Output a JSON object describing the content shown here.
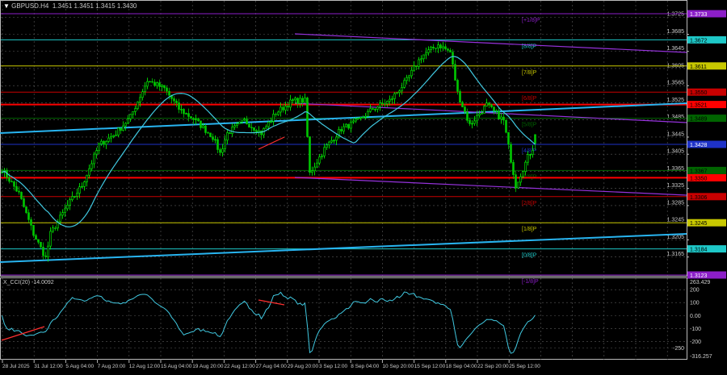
{
  "window": {
    "symbol_title": "GBPUSD.H4",
    "ohlc": "1.3451 1.3451 1.3415 1.3430"
  },
  "indicator": {
    "title": "X_CCI(20) -14.0092"
  },
  "colors": {
    "background": "#000000",
    "grid": "#5a5a5a",
    "bull_candle": "#00ff00",
    "bear_candle": "#00c800",
    "moving_average": "#40c8e0",
    "trend_line": "#28b4f0",
    "channel": "#9632dc",
    "support_resistance": "#ff0000",
    "cci_line": "#40c8e0",
    "divergence": "#ff3030"
  },
  "price_axis": {
    "ticks": [
      "1.3725",
      "1.3685",
      "1.3645",
      "1.3605",
      "1.3565",
      "1.3525",
      "1.3485",
      "1.3445",
      "1.3405",
      "1.3365",
      "1.3325",
      "1.3285",
      "1.3245",
      "1.3205",
      "1.3165"
    ],
    "range": [
      1.3123,
      1.3733
    ]
  },
  "murrey_levels": [
    {
      "label": "[+1/8]P",
      "price": "1.3733",
      "color": "#8c1ec8",
      "text": "#ffffff"
    },
    {
      "label": "[8/8]P",
      "price": "1.3672",
      "color": "#1ec8c8",
      "text": "#000000"
    },
    {
      "label": "[7/8]P",
      "price": "1.3611",
      "color": "#c8c800",
      "text": "#000000"
    },
    {
      "label": "[6/8]P",
      "price": "1.3550",
      "color": "#c80000",
      "text": "#000000"
    },
    {
      "label": "[5/8]P",
      "price": "1.3489",
      "color": "#006400",
      "text": "#000000"
    },
    {
      "label": "[4/8]P",
      "price": "1.3428",
      "color": "#1e32c8",
      "text": "#ffffff"
    },
    {
      "label": "[3/8]P",
      "price": "1.3367",
      "color": "#006400",
      "text": "#000000"
    },
    {
      "label": "[2/8]P",
      "price": "1.3306",
      "color": "#c80000",
      "text": "#000000"
    },
    {
      "label": "[1/8]P",
      "price": "1.3245",
      "color": "#c8c800",
      "text": "#000000"
    },
    {
      "label": "[0/8]P",
      "price": "1.3184",
      "color": "#1ec8c8",
      "text": "#000000"
    },
    {
      "label": "[-1/8]P",
      "price": "1.3123",
      "color": "#8c1ec8",
      "text": "#ffffff"
    }
  ],
  "red_levels": [
    "1.3521",
    "1.3350"
  ],
  "cci_axis": {
    "ticks": [
      "263.429",
      "200",
      "100",
      "0.00",
      "-100",
      "-200",
      "-250",
      "-316.257"
    ],
    "range": [
      -316.257,
      263.429
    ]
  },
  "time_axis": [
    "28 Jul 2025",
    "31 Jul 12:00",
    "5 Aug 04:00",
    "7 Aug 20:00",
    "12 Aug 12:00",
    "15 Aug 04:00",
    "19 Aug 20:00",
    "22 Aug 12:00",
    "27 Aug 04:00",
    "29 Aug 20:00",
    "3 Sep 12:00",
    "8 Sep 04:00",
    "10 Sep 20:00",
    "15 Sep 12:00",
    "18 Sep 04:00",
    "22 Sep 20:00",
    "25 Sep 12:00"
  ],
  "chart_data": {
    "type": "candlestick",
    "approx_close_path": [
      {
        "bar": 0,
        "price": 1.337
      },
      {
        "bar": 7,
        "price": 1.3313
      },
      {
        "bar": 13,
        "price": 1.3219
      },
      {
        "bar": 18,
        "price": 1.3163
      },
      {
        "bar": 20,
        "price": 1.3219
      },
      {
        "bar": 27,
        "price": 1.3285
      },
      {
        "bar": 33,
        "price": 1.3332
      },
      {
        "bar": 40,
        "price": 1.3426
      },
      {
        "bar": 47,
        "price": 1.3454
      },
      {
        "bar": 53,
        "price": 1.3492
      },
      {
        "bar": 60,
        "price": 1.3577
      },
      {
        "bar": 67,
        "price": 1.3558
      },
      {
        "bar": 73,
        "price": 1.3511
      },
      {
        "bar": 80,
        "price": 1.3483
      },
      {
        "bar": 87,
        "price": 1.3445
      },
      {
        "bar": 90,
        "price": 1.3407
      },
      {
        "bar": 93,
        "price": 1.3454
      },
      {
        "bar": 100,
        "price": 1.3483
      },
      {
        "bar": 107,
        "price": 1.3454
      },
      {
        "bar": 113,
        "price": 1.3501
      },
      {
        "bar": 120,
        "price": 1.353
      },
      {
        "bar": 125,
        "price": 1.353
      },
      {
        "bar": 127,
        "price": 1.336
      },
      {
        "bar": 133,
        "price": 1.3417
      },
      {
        "bar": 140,
        "price": 1.3464
      },
      {
        "bar": 147,
        "price": 1.3483
      },
      {
        "bar": 153,
        "price": 1.3511
      },
      {
        "bar": 160,
        "price": 1.353
      },
      {
        "bar": 167,
        "price": 1.3577
      },
      {
        "bar": 173,
        "price": 1.3633
      },
      {
        "bar": 180,
        "price": 1.3661
      },
      {
        "bar": 185,
        "price": 1.3643
      },
      {
        "bar": 188,
        "price": 1.3548
      },
      {
        "bar": 193,
        "price": 1.3473
      },
      {
        "bar": 200,
        "price": 1.352
      },
      {
        "bar": 207,
        "price": 1.3483
      },
      {
        "bar": 212,
        "price": 1.3332
      },
      {
        "bar": 217,
        "price": 1.3398
      },
      {
        "bar": 220,
        "price": 1.343
      }
    ],
    "last": {
      "open": 1.3451,
      "high": 1.3451,
      "low": 1.3415,
      "close": 1.343
    },
    "indicators": [
      "moving average (cyan)",
      "X_CCI(20)"
    ]
  }
}
